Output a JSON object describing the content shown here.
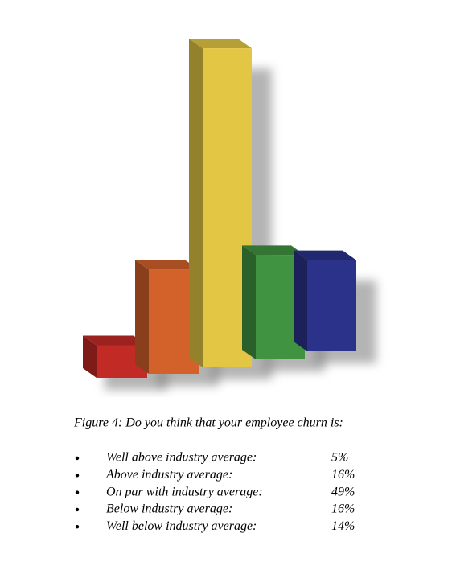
{
  "chart_data": {
    "type": "bar",
    "title": "Figure 4: Do you think that your employee churn is:",
    "categories": [
      "Well above industry average:",
      "Above industry average:",
      "On par with industry average:",
      "Below industry average:",
      "Well below industry average:"
    ],
    "values": [
      5,
      16,
      49,
      16,
      14
    ],
    "value_labels": [
      "5%",
      "16%",
      "49%",
      "16%",
      "14%"
    ],
    "colors": [
      "#c22a26",
      "#d2612a",
      "#e3c744",
      "#409341",
      "#2b3289"
    ]
  }
}
